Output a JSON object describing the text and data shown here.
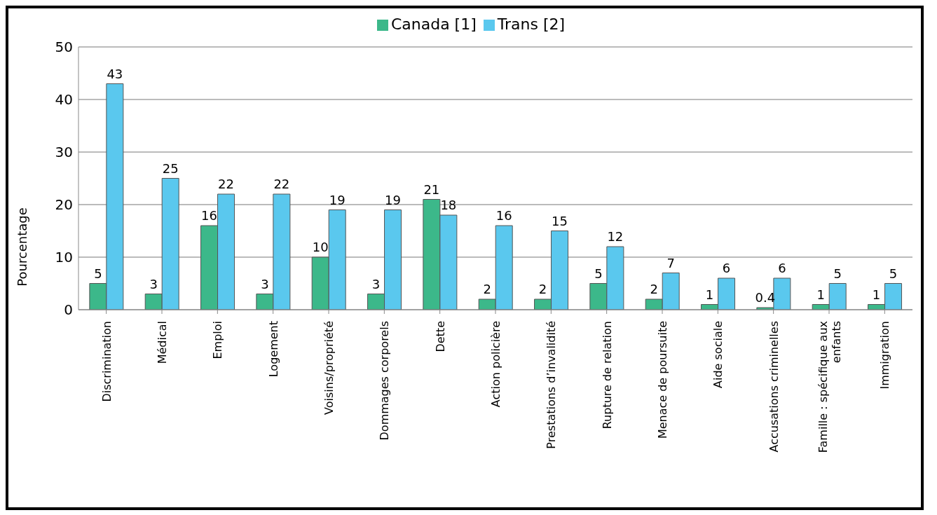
{
  "chart_data": {
    "type": "bar",
    "ylabel": "Pourcentage",
    "categories": [
      "Discrimination",
      "Médical",
      "Emploi",
      "Logement",
      "Voisins/propriété",
      "Dommages corporels",
      "Dette",
      "Action policière",
      "Prestations d’invalidité",
      "Rupture de relation",
      "Menace de poursuite",
      "Aide sociale",
      "Accusations criminelles",
      "Famille : spécifique aux enfants",
      "Immigration"
    ],
    "series": [
      {
        "name": "Canada [1]",
        "color": "#3cb88a",
        "values": [
          5,
          3,
          16,
          3,
          10,
          3,
          21,
          2,
          2,
          5,
          2,
          1,
          0.4,
          1,
          1
        ]
      },
      {
        "name": "Trans [2]",
        "color": "#5ac8ee",
        "values": [
          43,
          25,
          22,
          22,
          19,
          19,
          18,
          16,
          15,
          12,
          7,
          6,
          6,
          5,
          5
        ]
      }
    ],
    "ylim": [
      0,
      50
    ],
    "yticks": [
      0,
      10,
      20,
      30,
      40,
      50
    ],
    "grid": "y",
    "legend": "top",
    "data_labels": true
  }
}
